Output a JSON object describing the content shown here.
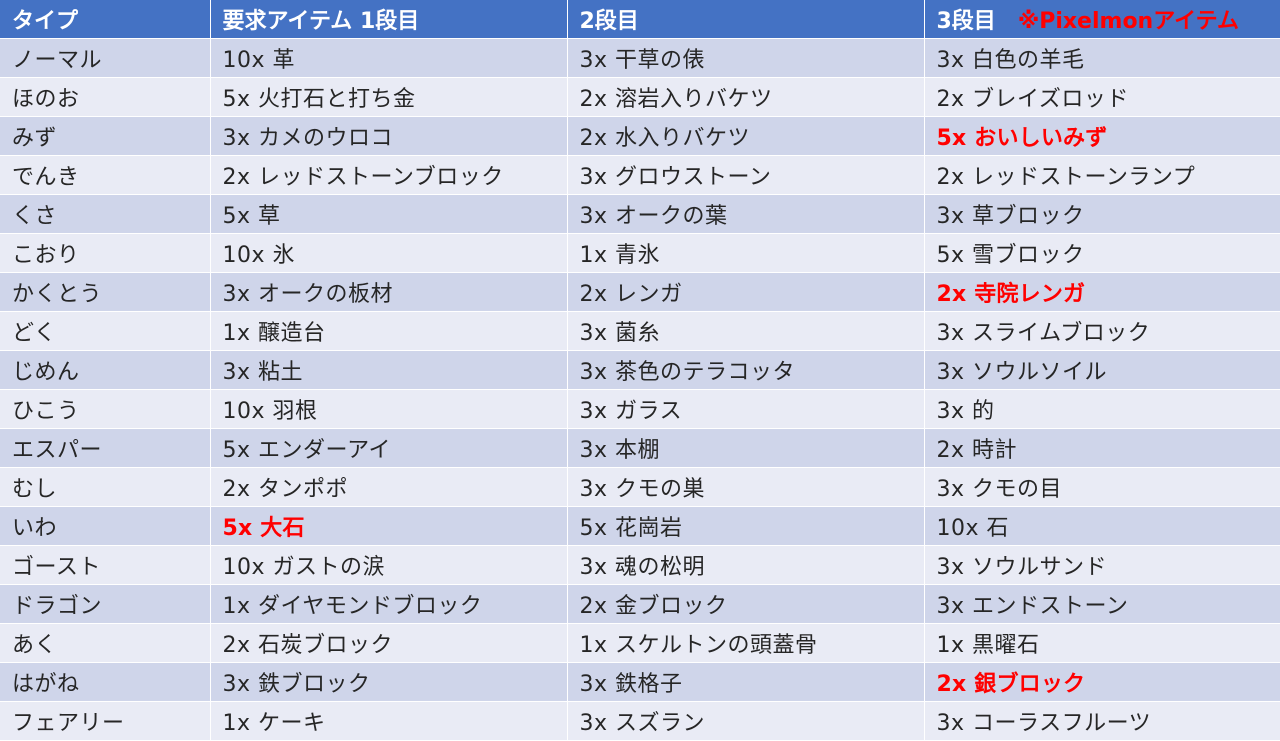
{
  "header": {
    "col0": "タイプ",
    "col1": "要求アイテム 1段目",
    "col2": "2段目",
    "col3": "3段目",
    "note": "※Pixelmonアイテム"
  },
  "accent_color": "#ff0000",
  "header_color": "#4472c4",
  "rows": [
    {
      "type": "ノーマル",
      "t1": "10x 革",
      "t2": "3x 干草の俵",
      "t3": "3x 白色の羊毛",
      "hl": []
    },
    {
      "type": "ほのお",
      "t1": "5x 火打石と打ち金",
      "t2": "2x 溶岩入りバケツ",
      "t3": "2x ブレイズロッド",
      "hl": []
    },
    {
      "type": "みず",
      "t1": "3x カメのウロコ",
      "t2": "2x 水入りバケツ",
      "t3": "5x おいしいみず",
      "hl": [
        "t3"
      ]
    },
    {
      "type": "でんき",
      "t1": "2x レッドストーンブロック",
      "t2": "3x グロウストーン",
      "t3": "2x レッドストーンランプ",
      "hl": []
    },
    {
      "type": "くさ",
      "t1": "5x 草",
      "t2": "3x オークの葉",
      "t3": "3x 草ブロック",
      "hl": []
    },
    {
      "type": "こおり",
      "t1": "10x 氷",
      "t2": "1x 青氷",
      "t3": "5x 雪ブロック",
      "hl": []
    },
    {
      "type": "かくとう",
      "t1": "3x オークの板材",
      "t2": "2x レンガ",
      "t3": "2x 寺院レンガ",
      "hl": [
        "t3"
      ]
    },
    {
      "type": "どく",
      "t1": "1x 醸造台",
      "t2": "3x 菌糸",
      "t3": "3x スライムブロック",
      "hl": []
    },
    {
      "type": "じめん",
      "t1": "3x 粘土",
      "t2": "3x 茶色のテラコッタ",
      "t3": "3x ソウルソイル",
      "hl": []
    },
    {
      "type": "ひこう",
      "t1": "10x 羽根",
      "t2": "3x ガラス",
      "t3": "3x 的",
      "hl": []
    },
    {
      "type": "エスパー",
      "t1": "5x エンダーアイ",
      "t2": "3x 本棚",
      "t3": "2x 時計",
      "hl": []
    },
    {
      "type": "むし",
      "t1": "2x タンポポ",
      "t2": "3x クモの巣",
      "t3": "3x クモの目",
      "hl": []
    },
    {
      "type": "いわ",
      "t1": "5x 大石",
      "t2": "5x 花崗岩",
      "t3": "10x 石",
      "hl": [
        "t1"
      ]
    },
    {
      "type": "ゴースト",
      "t1": "10x ガストの涙",
      "t2": "3x 魂の松明",
      "t3": "3x ソウルサンド",
      "hl": []
    },
    {
      "type": "ドラゴン",
      "t1": "1x ダイヤモンドブロック",
      "t2": "2x 金ブロック",
      "t3": "3x エンドストーン",
      "hl": []
    },
    {
      "type": "あく",
      "t1": "2x 石炭ブロック",
      "t2": "1x スケルトンの頭蓋骨",
      "t3": "1x 黒曜石",
      "hl": []
    },
    {
      "type": "はがね",
      "t1": "3x 鉄ブロック",
      "t2": "3x 鉄格子",
      "t3": "2x 銀ブロック",
      "hl": [
        "t3"
      ]
    },
    {
      "type": "フェアリー",
      "t1": "1x ケーキ",
      "t2": "3x スズラン",
      "t3": "3x コーラスフルーツ",
      "hl": []
    }
  ]
}
